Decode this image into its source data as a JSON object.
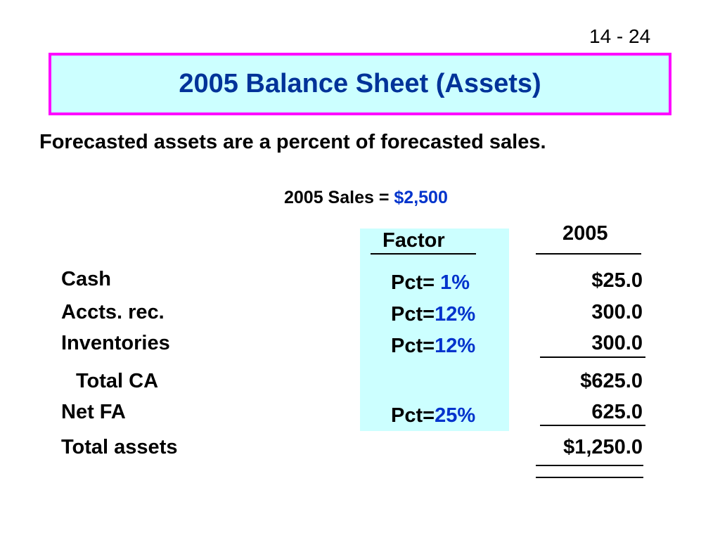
{
  "slide": {
    "number": "14 - 24",
    "title": "2005 Balance Sheet (Assets)",
    "subtitle": "Forecasted assets are a percent of forecasted sales.",
    "sales_label": "2005 Sales = ",
    "sales_value": "$2,500"
  },
  "table": {
    "factor_header": "Factor",
    "year_header": "2005",
    "rows": [
      {
        "label": "Cash",
        "pct_label": "Pct=",
        "pct_value": " 1%",
        "value": "$25.0"
      },
      {
        "label": "Accts. rec.",
        "pct_label": "Pct=",
        "pct_value": "12%",
        "value": "300.0"
      },
      {
        "label": "Inventories",
        "pct_label": "Pct=",
        "pct_value": "12%",
        "value": "300.0"
      },
      {
        "label": "Total CA",
        "value": "$625.0"
      },
      {
        "label": "Net FA",
        "pct_label": "Pct=",
        "pct_value": "25%",
        "value": "625.0"
      },
      {
        "label": "Total assets",
        "value": "$1,250.0"
      }
    ]
  },
  "colors": {
    "title_border": "#ff00ff",
    "title_fill": "#ccffff",
    "title_text": "#003399",
    "highlight_text": "#0033cc"
  }
}
